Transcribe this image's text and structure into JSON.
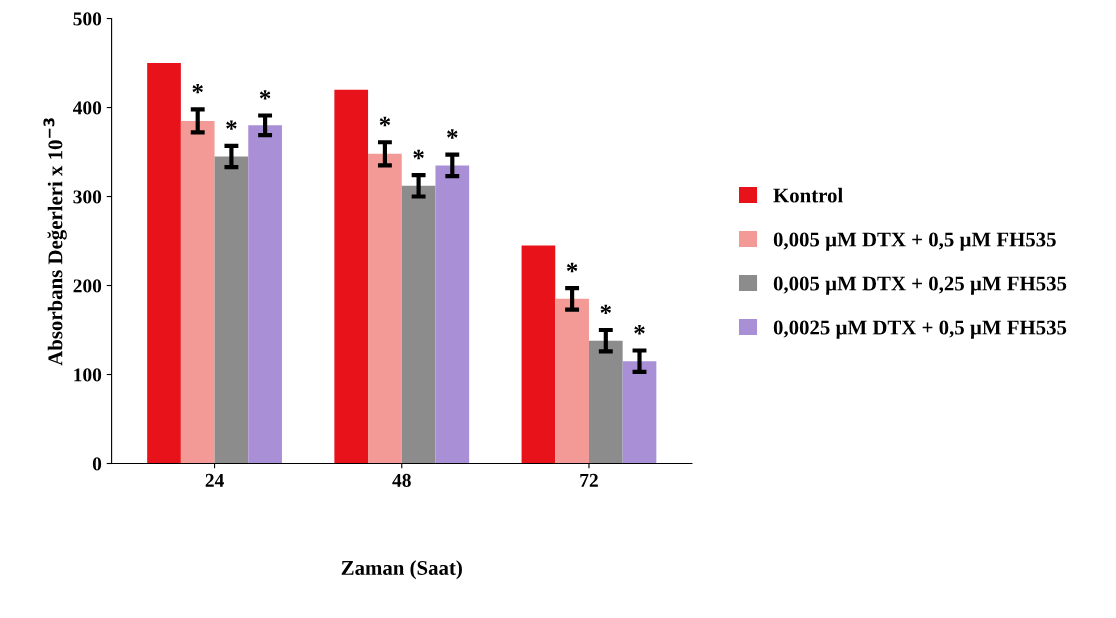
{
  "chart_data": {
    "type": "bar",
    "xlabel": "Zaman (Saat)",
    "ylabel": "Absorbans Değerleri x 10$^{−3}$",
    "categories": [
      "24",
      "48",
      "72"
    ],
    "series": [
      {
        "name": "Kontrol",
        "color": "#e8121b",
        "values": [
          450,
          420,
          245
        ],
        "errors": [
          null,
          null,
          null
        ],
        "value_labels": [
          null,
          null,
          null
        ]
      },
      {
        "name": "0,005 µM DTX + 0,5 µM FH535",
        "color": "#f49a96",
        "values": [
          385,
          348,
          185
        ],
        "errors": [
          13,
          13,
          12
        ],
        "value_labels": [
          "*",
          "*",
          "*"
        ]
      },
      {
        "name": "0,005 µM DTX + 0,25 µM FH535",
        "color": "#8c8c8c",
        "values": [
          345,
          312,
          138
        ],
        "errors": [
          12,
          12,
          12
        ],
        "value_labels": [
          "*",
          "*",
          "*"
        ]
      },
      {
        "name": "0,0025 µM DTX + 0,5 µM FH535",
        "color": "#a98fd6",
        "values": [
          380,
          335,
          115
        ],
        "errors": [
          11,
          12,
          12
        ],
        "value_labels": [
          "*",
          "*",
          "*"
        ]
      }
    ],
    "ylim": [
      0,
      500
    ],
    "yticks": [
      0,
      100,
      200,
      300,
      400,
      500
    ],
    "grid": false,
    "legend": "right"
  }
}
